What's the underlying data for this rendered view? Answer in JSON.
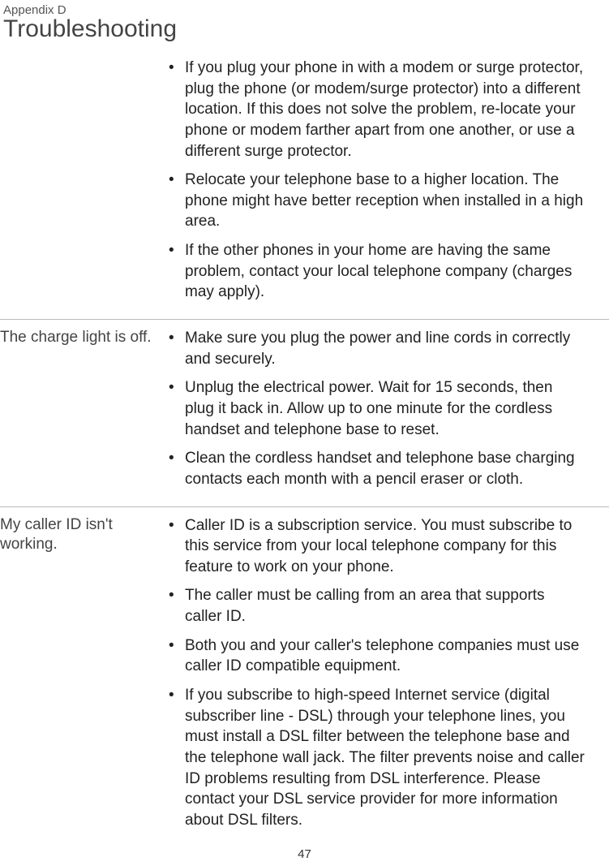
{
  "header": {
    "appendix": "Appendix D",
    "title": "Troubleshooting"
  },
  "sections": [
    {
      "problem": "",
      "bullets": [
        "If you plug your phone in with a modem or surge protector, plug the phone (or modem/surge protector) into a different location. If this does not solve the problem, re-locate your phone or modem farther apart from one another, or use a different surge protector.",
        "Relocate your telephone base to a higher location. The phone might have better reception when installed in a high area.",
        "If the other phones in your home are having the same problem, contact your local telephone company (charges may apply)."
      ]
    },
    {
      "problem": "The charge light is off.",
      "bullets": [
        "Make sure you plug the power and line cords in correctly and securely.",
        "Unplug the electrical power. Wait for 15 seconds, then plug it back in. Allow up to one minute for the cordless handset and telephone base to reset.",
        "Clean the cordless handset and telephone base charging contacts each month with a pencil eraser or cloth."
      ]
    },
    {
      "problem": "My caller ID isn't working.",
      "bullets": [
        "Caller ID is a subscription service. You must subscribe to this service from your local telephone company for this feature to work on your phone.",
        "The caller must be calling from an area that supports caller ID.",
        "Both you and your caller's telephone companies must use caller ID compatible equipment.",
        "If you subscribe to high-speed Internet service (digital subscriber line - DSL) through your telephone lines, you must install a DSL filter between the telephone base and the telephone wall jack. The filter prevents noise and caller ID problems resulting from DSL interference. Please contact your DSL service provider for more information about DSL filters."
      ]
    }
  ],
  "page_number": "47"
}
